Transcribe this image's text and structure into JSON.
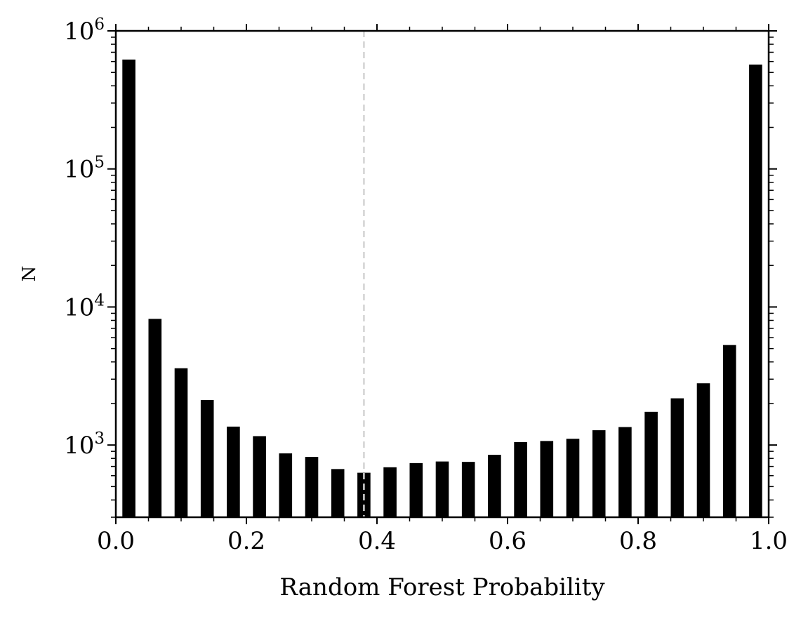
{
  "chart_data": {
    "type": "bar",
    "title": "",
    "xlabel": "Random Forest Probability",
    "ylabel": "N",
    "xlim": [
      0.0,
      1.0
    ],
    "ylim": [
      300,
      1000000
    ],
    "y_scale": "log",
    "grid": false,
    "legend": null,
    "bar_color": "#000000",
    "threshold_line": {
      "x": 0.38,
      "color": "#d3d3d3",
      "style": "dashed"
    },
    "xticks": [
      0.0,
      0.2,
      0.4,
      0.6,
      0.8,
      1.0
    ],
    "xtick_labels": [
      "0.0",
      "0.2",
      "0.4",
      "0.6",
      "0.8",
      "1.0"
    ],
    "yticks": [
      1000,
      10000,
      100000,
      1000000
    ],
    "ytick_labels": [
      {
        "base": "10",
        "exp": "3"
      },
      {
        "base": "10",
        "exp": "4"
      },
      {
        "base": "10",
        "exp": "5"
      },
      {
        "base": "10",
        "exp": "6"
      }
    ],
    "bin_width": 0.04,
    "bar_width": 0.02,
    "x": [
      0.02,
      0.06,
      0.1,
      0.14,
      0.18,
      0.22,
      0.26,
      0.3,
      0.34,
      0.38,
      0.42,
      0.46,
      0.5,
      0.54,
      0.58,
      0.62,
      0.66,
      0.7,
      0.74,
      0.78,
      0.82,
      0.86,
      0.9,
      0.94,
      0.98
    ],
    "values": [
      620000,
      8200,
      3600,
      2120,
      1360,
      1160,
      870,
      820,
      670,
      630,
      690,
      740,
      760,
      755,
      850,
      1050,
      1070,
      1110,
      1280,
      1350,
      1740,
      2180,
      2800,
      5300,
      570000
    ]
  }
}
